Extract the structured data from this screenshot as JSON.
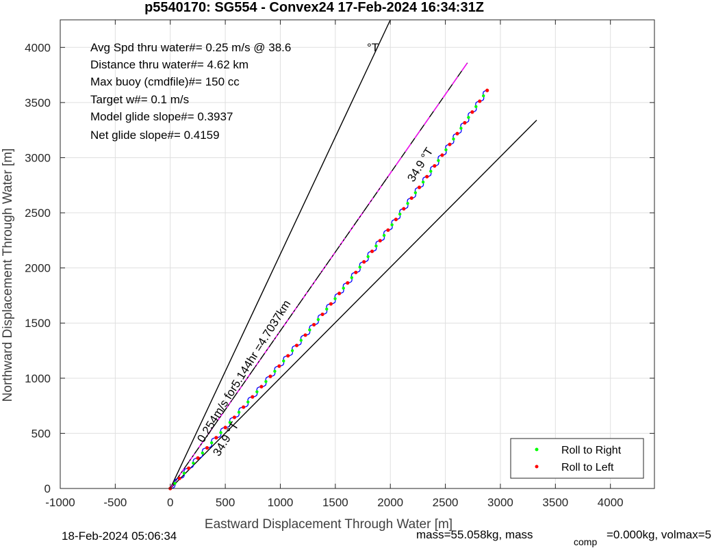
{
  "chart_data": {
    "type": "line",
    "title": "p5540170: SG554 - Convex24 17-Feb-2024 16:34:31Z",
    "xlabel": "Eastward Displacement Through Water [m]",
    "ylabel": "Northward Displacement Through Water [m]",
    "xlim": [
      -1000,
      4400
    ],
    "ylim": [
      0,
      4250
    ],
    "xticks": [
      -1000,
      -500,
      0,
      500,
      1000,
      1500,
      2000,
      2500,
      3000,
      3500,
      4000
    ],
    "yticks": [
      0,
      500,
      1000,
      1500,
      2000,
      2500,
      3000,
      3500,
      4000
    ],
    "grid": true,
    "legend_position": "bottom-right",
    "annotations": [
      "Avg Spd thru water#=  0.25 m/s @  38.6",
      "°T",
      "Distance thru water#=  4.62 km",
      "Max buoy (cmdfile)#= 150 cc",
      "Target w#= 0.1 m/s",
      "Model glide slope#= 0.3937",
      "Net glide slope#= 0.4159"
    ],
    "rotated_labels": [
      "0.254m/s for5.144hr =4.7037km",
      "34.9 °T",
      "34.9 °T"
    ],
    "reference_lines": [
      {
        "x": [
          0,
          2000
        ],
        "y": [
          0,
          4250
        ]
      },
      {
        "x": [
          0,
          3330
        ],
        "y": [
          0,
          3340
        ]
      },
      {
        "x": [
          0,
          2700
        ],
        "y": [
          0,
          3860
        ]
      }
    ],
    "series": [
      {
        "name": "Roll to Right",
        "color": "#00ff00"
      },
      {
        "name": "Roll to Left",
        "color": "#ff0000"
      }
    ],
    "track": {
      "start": [
        0,
        0
      ],
      "end": [
        2880,
        3610
      ],
      "color": "#0000ff"
    },
    "dashed_line_color": "#000000",
    "magenta_color": "#ff00ff",
    "footer_left": "18-Feb-2024 05:06:34",
    "footer_right_1": "mass=55.058kg, mass",
    "footer_right_sub": "comp",
    "footer_right_2": "=0.000kg, volmax=5"
  }
}
